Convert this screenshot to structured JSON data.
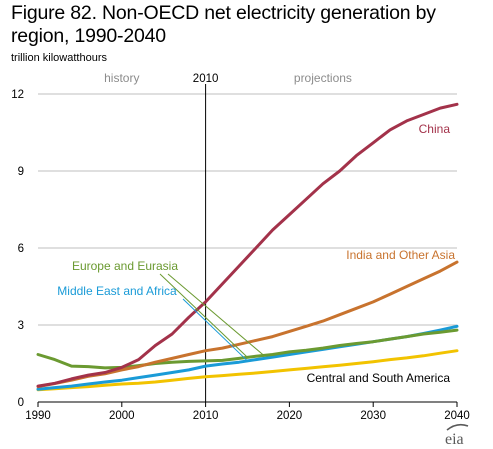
{
  "title": "Figure 82. Non-OECD net electricity generation by region, 1990-2040",
  "units_label": "trillion kilowatthours",
  "logo_text": "eia",
  "annotations": {
    "history": "history",
    "projections": "projections",
    "divider": "2010"
  },
  "colors": {
    "China": "#a3324a",
    "India and Other Asia": "#c8732e",
    "Europe and Eurasia": "#6b9a31",
    "Middle East and Africa": "#1a9bd7",
    "Central and South America": "#f2c300",
    "divider": "#000000",
    "grid": "#bfbfbf"
  },
  "chart_data": {
    "type": "line",
    "title": "Figure 82. Non-OECD net electricity generation by region, 1990-2040",
    "xlabel": "",
    "ylabel": "trillion kilowatthours",
    "xlim": [
      1990,
      2040
    ],
    "ylim": [
      0,
      12
    ],
    "xticks": [
      1990,
      2000,
      2010,
      2020,
      2030,
      2040
    ],
    "yticks": [
      0,
      3,
      6,
      9,
      12
    ],
    "grid": "horizontal",
    "x": [
      1990,
      1992,
      1994,
      1996,
      1998,
      2000,
      2002,
      2004,
      2006,
      2008,
      2010,
      2012,
      2014,
      2016,
      2018,
      2020,
      2022,
      2024,
      2026,
      2028,
      2030,
      2032,
      2034,
      2036,
      2038,
      2040
    ],
    "series": [
      {
        "name": "China",
        "values": [
          0.62,
          0.73,
          0.9,
          1.05,
          1.15,
          1.35,
          1.65,
          2.2,
          2.65,
          3.3,
          3.9,
          4.6,
          5.3,
          6.0,
          6.7,
          7.3,
          7.9,
          8.5,
          9.0,
          9.6,
          10.1,
          10.6,
          10.95,
          11.2,
          11.45,
          11.6
        ]
      },
      {
        "name": "India and Other Asia",
        "values": [
          0.6,
          0.72,
          0.85,
          1.0,
          1.1,
          1.25,
          1.38,
          1.55,
          1.7,
          1.85,
          2.0,
          2.1,
          2.25,
          2.4,
          2.55,
          2.75,
          2.95,
          3.15,
          3.4,
          3.65,
          3.9,
          4.2,
          4.5,
          4.8,
          5.1,
          5.45
        ]
      },
      {
        "name": "Europe and Eurasia",
        "values": [
          1.85,
          1.65,
          1.4,
          1.38,
          1.33,
          1.35,
          1.42,
          1.5,
          1.55,
          1.58,
          1.6,
          1.62,
          1.7,
          1.78,
          1.85,
          1.95,
          2.02,
          2.1,
          2.2,
          2.28,
          2.35,
          2.45,
          2.55,
          2.65,
          2.72,
          2.8
        ]
      },
      {
        "name": "Middle East and Africa",
        "values": [
          0.5,
          0.56,
          0.62,
          0.7,
          0.78,
          0.85,
          0.95,
          1.05,
          1.15,
          1.25,
          1.4,
          1.48,
          1.55,
          1.65,
          1.75,
          1.85,
          1.95,
          2.05,
          2.15,
          2.25,
          2.35,
          2.45,
          2.55,
          2.67,
          2.8,
          2.95
        ]
      },
      {
        "name": "Central and South America",
        "values": [
          0.48,
          0.52,
          0.56,
          0.6,
          0.65,
          0.7,
          0.73,
          0.78,
          0.85,
          0.92,
          0.98,
          1.03,
          1.08,
          1.13,
          1.19,
          1.25,
          1.31,
          1.37,
          1.43,
          1.5,
          1.57,
          1.65,
          1.72,
          1.8,
          1.9,
          2.0
        ]
      }
    ]
  }
}
